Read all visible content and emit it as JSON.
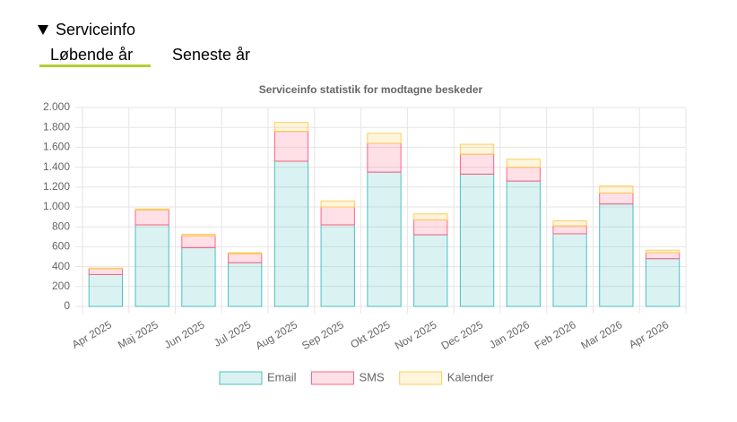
{
  "header": {
    "title": "Serviceinfo"
  },
  "tabs": [
    {
      "label": "Løbende år",
      "active": true
    },
    {
      "label": "Seneste år",
      "active": false
    }
  ],
  "chart_data": {
    "type": "stacked_bar",
    "title": "Serviceinfo statistik for modtagne beskeder",
    "categories": [
      "Apr 2025",
      "Maj 2025",
      "Jun 2025",
      "Jul 2025",
      "Aug 2025",
      "Sep 2025",
      "Okt 2025",
      "Nov 2025",
      "Dec 2025",
      "Jan 2026",
      "Feb 2026",
      "Mar 2026",
      "Apr 2026"
    ],
    "series": [
      {
        "name": "Email",
        "color": "#4bc0c0",
        "values": [
          320,
          820,
          590,
          440,
          1460,
          820,
          1350,
          720,
          1330,
          1260,
          730,
          1030,
          480
        ]
      },
      {
        "name": "SMS",
        "color": "#ff6384",
        "values": [
          60,
          150,
          120,
          90,
          300,
          180,
          290,
          150,
          200,
          140,
          80,
          110,
          60
        ]
      },
      {
        "name": "Kalender",
        "color": "#ffcd56",
        "values": [
          5,
          10,
          15,
          10,
          90,
          60,
          100,
          60,
          100,
          80,
          50,
          70,
          25
        ]
      }
    ],
    "ylim": [
      0,
      2000
    ],
    "yticks": [
      0,
      200,
      400,
      600,
      800,
      {
        "value": 1000,
        "label": "1.000"
      },
      {
        "value": 1200,
        "label": "1.200"
      },
      {
        "value": 1400,
        "label": "1.400"
      },
      {
        "value": 1600,
        "label": "1.600"
      },
      {
        "value": 1800,
        "label": "1.800"
      },
      {
        "value": 2000,
        "label": "2.000"
      }
    ],
    "grid": true,
    "legend": "bottom"
  }
}
